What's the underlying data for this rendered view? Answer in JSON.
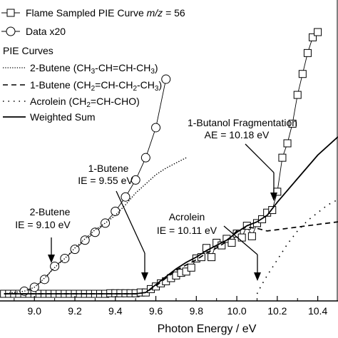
{
  "chart_data": {
    "type": "line",
    "xlabel": "Photon Energy / eV",
    "ylabel": "",
    "xlim": [
      8.83,
      10.5
    ],
    "ylim": [
      0,
      1
    ],
    "x_ticks": [
      "9.0",
      "9.2",
      "9.4",
      "9.6",
      "9.8",
      "10.0",
      "10.2",
      "10.4"
    ],
    "x_tick_values": [
      9.0,
      9.2,
      9.4,
      9.6,
      9.8,
      10.0,
      10.2,
      10.4
    ],
    "legend": {
      "placement": "top-left",
      "entries": [
        {
          "label_pre": "Flame Sampled PIE Curve ",
          "label_ital": "m/z",
          "label_post": " = 56",
          "marker": "square",
          "line": "solid"
        },
        {
          "label_pre": "Data x20",
          "label_ital": "",
          "label_post": "",
          "marker": "circle",
          "line": "solid"
        }
      ],
      "group_title": "PIE Curves",
      "curves": [
        {
          "label": "2-Butene (CH3-CH=CH-CH3)",
          "style": "dotted"
        },
        {
          "label": "1-Butene (CH2=CH-CH2-CH3)",
          "style": "dashed"
        },
        {
          "label": "Acrolein (CH2=CH-CHO)",
          "style": "sparse-dotted"
        },
        {
          "label": "Weighted Sum",
          "style": "solid"
        }
      ]
    },
    "series": [
      {
        "name": "Flame Sampled PIE Curve m/z = 56",
        "marker": "square",
        "x": [
          8.85,
          8.875,
          8.9,
          8.925,
          8.95,
          8.975,
          9.0,
          9.025,
          9.05,
          9.075,
          9.1,
          9.125,
          9.15,
          9.175,
          9.2,
          9.225,
          9.25,
          9.275,
          9.3,
          9.325,
          9.35,
          9.375,
          9.4,
          9.425,
          9.45,
          9.475,
          9.5,
          9.525,
          9.55,
          9.575,
          9.6,
          9.625,
          9.65,
          9.675,
          9.7,
          9.725,
          9.75,
          9.775,
          9.8,
          9.825,
          9.85,
          9.875,
          9.9,
          9.925,
          9.95,
          9.975,
          10.0,
          10.025,
          10.05,
          10.075,
          10.1,
          10.125,
          10.15,
          10.175,
          10.2,
          10.225,
          10.25,
          10.275,
          10.3,
          10.325,
          10.35,
          10.375,
          10.4
        ],
        "y": [
          0.0,
          0.0,
          0.0,
          0.0,
          0.0,
          0.0,
          0.0,
          0.0,
          0.0,
          0.0,
          0.0,
          0.0,
          0.0,
          0.0,
          0.0,
          0.0,
          0.0,
          0.0,
          0.0,
          0.0,
          0.0,
          0.002,
          0.002,
          0.002,
          0.002,
          0.002,
          0.002,
          0.005,
          0.005,
          0.018,
          0.028,
          0.04,
          0.048,
          0.06,
          0.07,
          0.08,
          0.085,
          0.1,
          0.135,
          0.14,
          0.175,
          0.14,
          0.195,
          0.185,
          0.21,
          0.195,
          0.23,
          0.215,
          0.26,
          0.22,
          0.27,
          0.285,
          0.31,
          0.32,
          0.39,
          0.52,
          0.575,
          0.65,
          0.76,
          0.84,
          0.92,
          0.98,
          1.0
        ],
        "display": {
          "x_min": 8.85,
          "x_max": 10.4,
          "y_top": 1.0,
          "pixel_hint": "squares"
        }
      },
      {
        "name": "Data x20",
        "marker": "circle",
        "x": [
          8.95,
          9.0,
          9.05,
          9.1,
          9.15,
          9.2,
          9.25,
          9.3,
          9.35,
          9.4,
          9.45,
          9.5,
          9.55,
          9.6,
          9.65
        ],
        "y": [
          0.01,
          0.025,
          0.055,
          0.105,
          0.135,
          0.17,
          0.205,
          0.235,
          0.27,
          0.315,
          0.37,
          0.435,
          0.52,
          0.635,
          0.82
        ]
      },
      {
        "name": "2-Butene (CH3-CH=CH-CH3)",
        "style": "dotted",
        "x": [
          8.85,
          8.95,
          9.0,
          9.05,
          9.1,
          9.15,
          9.2,
          9.25,
          9.3,
          9.35,
          9.4,
          9.45,
          9.5,
          9.55,
          9.6,
          9.65,
          9.7,
          9.75
        ],
        "y": [
          0.0,
          0.01,
          0.025,
          0.06,
          0.1,
          0.135,
          0.175,
          0.21,
          0.245,
          0.27,
          0.3,
          0.34,
          0.385,
          0.42,
          0.455,
          0.48,
          0.5,
          0.52
        ]
      },
      {
        "name": "1-Butene (CH2=CH-CH2-CH3)",
        "style": "dashed",
        "x": [
          8.85,
          9.5,
          9.55,
          9.6,
          9.65,
          9.7,
          9.75,
          9.8,
          9.85,
          9.9,
          9.95,
          10.0,
          10.05,
          10.1,
          10.15,
          10.2,
          10.3,
          10.4,
          10.5
        ],
        "y": [
          0.0,
          0.0,
          0.005,
          0.03,
          0.06,
          0.09,
          0.11,
          0.13,
          0.155,
          0.175,
          0.2,
          0.24,
          0.255,
          0.25,
          0.24,
          0.245,
          0.255,
          0.265,
          0.275
        ]
      },
      {
        "name": "Acrolein (CH2=CH-CHO)",
        "style": "sparse-dotted",
        "x": [
          10.1,
          10.12,
          10.15,
          10.2,
          10.25,
          10.3,
          10.35,
          10.4,
          10.45,
          10.5
        ],
        "y": [
          0.0,
          0.03,
          0.07,
          0.13,
          0.19,
          0.24,
          0.28,
          0.31,
          0.34,
          0.36
        ]
      },
      {
        "name": "Weighted Sum",
        "style": "solid",
        "x": [
          8.85,
          9.5,
          9.55,
          9.6,
          9.65,
          9.7,
          9.75,
          9.8,
          9.85,
          9.9,
          9.95,
          10.0,
          10.05,
          10.1,
          10.15,
          10.2,
          10.3,
          10.4,
          10.5
        ],
        "y": [
          0.0,
          0.0,
          0.005,
          0.035,
          0.065,
          0.095,
          0.12,
          0.14,
          0.165,
          0.185,
          0.205,
          0.235,
          0.26,
          0.275,
          0.3,
          0.35,
          0.44,
          0.53,
          0.6
        ]
      }
    ],
    "annotations": [
      {
        "lines": [
          "1-Butanol Fragmentation",
          "AE = 10.18 eV"
        ],
        "x": 10.18
      },
      {
        "lines": [
          "1-Butene",
          "IE = 9.55 eV"
        ],
        "x": 9.55
      },
      {
        "lines": [
          "2-Butene",
          "IE = 9.10 eV"
        ],
        "x": 9.1
      },
      {
        "lines": [
          "Acrolein",
          "IE = 10.11 eV"
        ],
        "x": 10.11
      }
    ]
  }
}
